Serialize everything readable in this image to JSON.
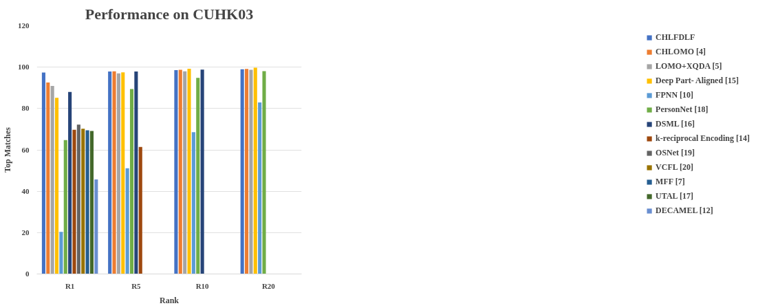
{
  "chart_data": {
    "type": "bar",
    "title": "Performance on CUHK03",
    "xlabel": "Rank",
    "ylabel": "Top Matches",
    "categories": [
      "R1",
      "R5",
      "R10",
      "R20"
    ],
    "ylim": [
      0,
      120
    ],
    "yticks": [
      0,
      20,
      40,
      60,
      80,
      100,
      120
    ],
    "grid": "y",
    "legend": "right",
    "series": [
      {
        "name": "CHLFDLF",
        "color": "#4472c4",
        "values": [
          97.4,
          97.9,
          98.6,
          99.0
        ]
      },
      {
        "name": "CHLOMO [4]",
        "color": "#ed7d31",
        "values": [
          92.6,
          98.0,
          98.7,
          99.1
        ]
      },
      {
        "name": "LOMO+XQDA [5]",
        "color": "#a5a5a5",
        "values": [
          90.9,
          97.0,
          98.0,
          98.7
        ]
      },
      {
        "name": "Deep Part- Aligned [15]",
        "color": "#ffc000",
        "values": [
          85.2,
          97.5,
          99.2,
          99.7
        ]
      },
      {
        "name": "FPNN [10]",
        "color": "#5b9bd5",
        "values": [
          20.4,
          51.1,
          68.6,
          82.9
        ]
      },
      {
        "name": "PersonNet [18]",
        "color": "#70ad47",
        "values": [
          64.7,
          89.4,
          94.8,
          98.1
        ]
      },
      {
        "name": "DSML [16]",
        "color": "#264478",
        "values": [
          88.0,
          97.9,
          98.8,
          null
        ]
      },
      {
        "name": "k-reciprocal Encoding [14]",
        "color": "#9e480e",
        "values": [
          69.7,
          61.4,
          null,
          null
        ]
      },
      {
        "name": "OSNet [19]",
        "color": "#636363",
        "values": [
          72.2,
          null,
          null,
          null
        ]
      },
      {
        "name": "VCFL [20]",
        "color": "#997300",
        "values": [
          70.2,
          null,
          null,
          null
        ]
      },
      {
        "name": "MFF [7]",
        "color": "#255e91",
        "values": [
          69.5,
          null,
          null,
          null
        ]
      },
      {
        "name": "UTAL [17]",
        "color": "#43682b",
        "values": [
          69.1,
          null,
          null,
          null
        ]
      },
      {
        "name": "DECAMEL [12]",
        "color": "#698ed0",
        "values": [
          45.7,
          null,
          null,
          null
        ]
      }
    ]
  }
}
